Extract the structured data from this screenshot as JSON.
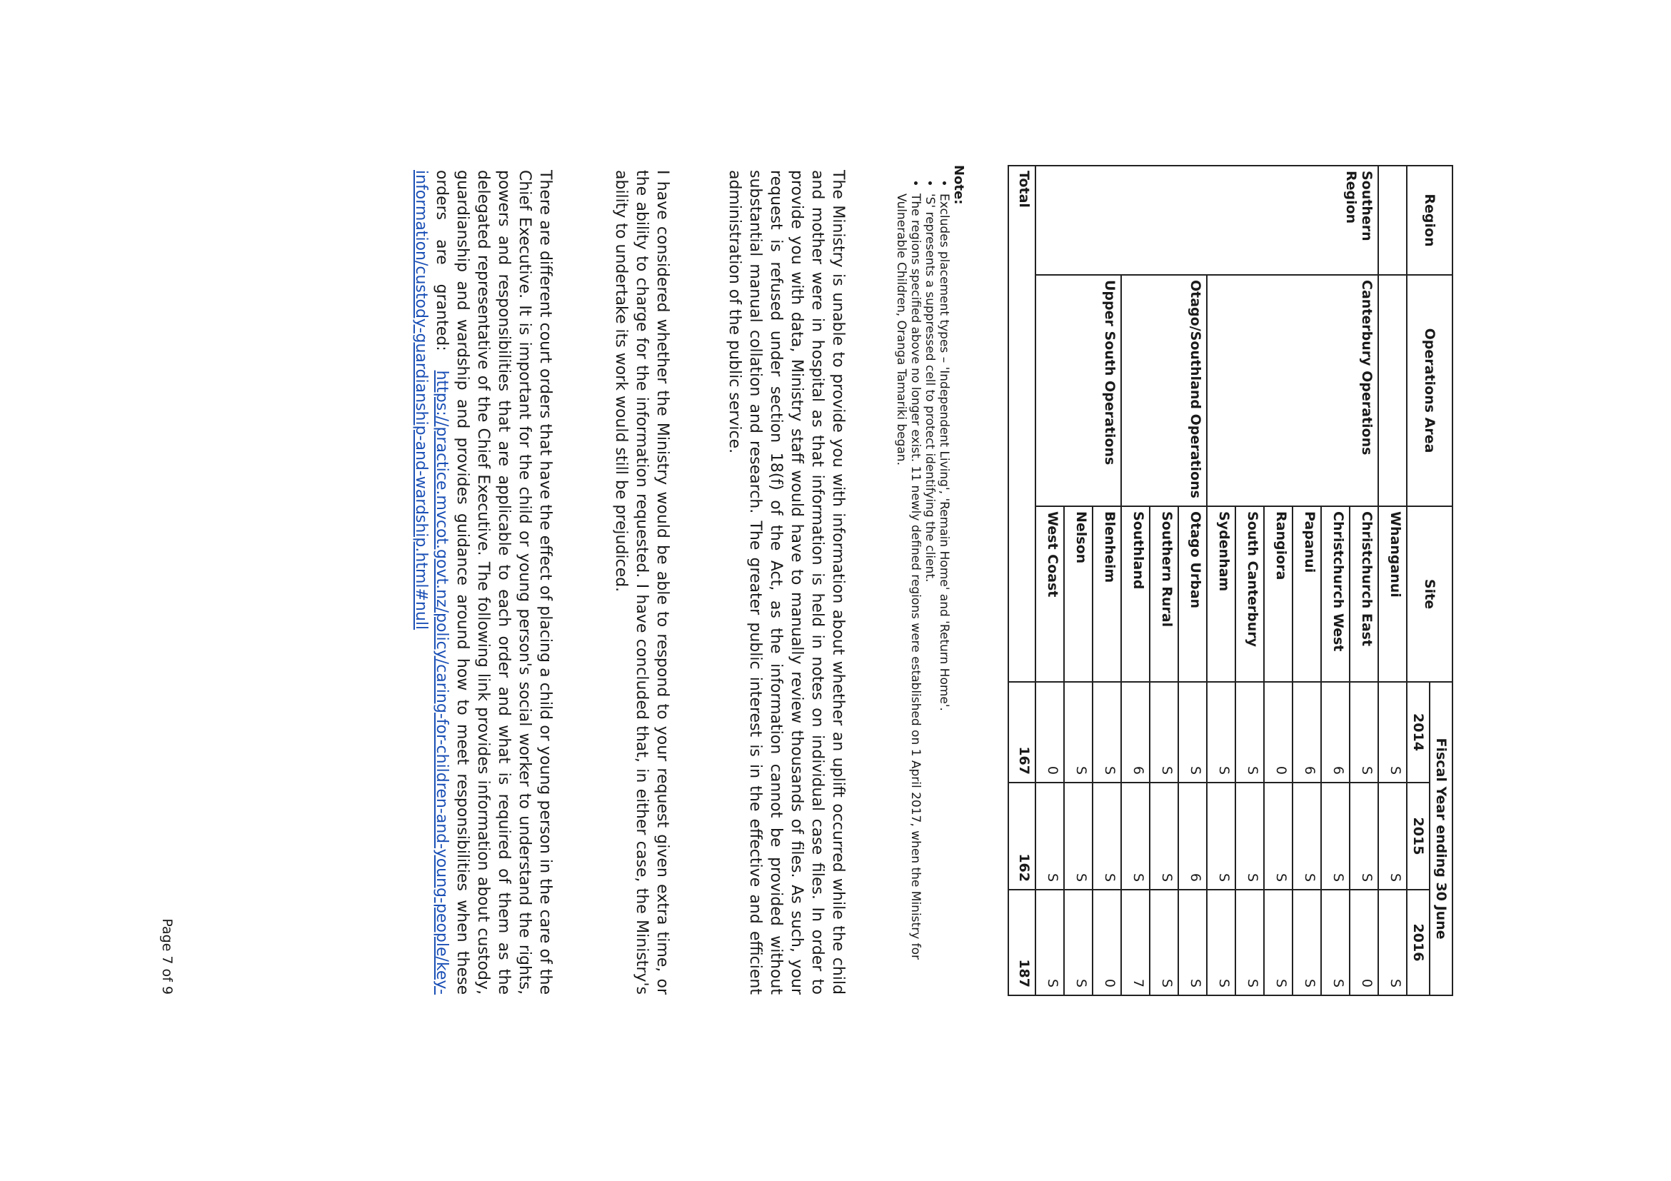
{
  "table": {
    "headers": {
      "region": "Region",
      "operations_area": "Operations Area",
      "site": "Site",
      "fiscal_year": "Fiscal Year ending 30 June",
      "years": [
        "2014",
        "2015",
        "2016"
      ]
    },
    "southern_region": "Southern Region",
    "areas": {
      "canterbury": "Canterbury Operations",
      "otago": "Otago/Southland Operations",
      "upper_south": "Upper South Operations"
    },
    "rows": [
      {
        "site": "Whanganui",
        "values": [
          "S",
          "S",
          "S"
        ]
      },
      {
        "site": "Christchurch East",
        "values": [
          "S",
          "S",
          "0"
        ]
      },
      {
        "site": "Christchurch West",
        "values": [
          "6",
          "S",
          "S"
        ]
      },
      {
        "site": "Papanui",
        "values": [
          "6",
          "S",
          "S"
        ]
      },
      {
        "site": "Rangiora",
        "values": [
          "0",
          "S",
          "S"
        ]
      },
      {
        "site": "South Canterbury",
        "values": [
          "S",
          "S",
          "S"
        ]
      },
      {
        "site": "Sydenham",
        "values": [
          "S",
          "S",
          "S"
        ]
      },
      {
        "site": "Otago Urban",
        "values": [
          "S",
          "6",
          "S"
        ]
      },
      {
        "site": "Southern Rural",
        "values": [
          "S",
          "S",
          "S"
        ]
      },
      {
        "site": "Southland",
        "values": [
          "6",
          "S",
          "7"
        ]
      },
      {
        "site": "Blenheim",
        "values": [
          "S",
          "S",
          "0"
        ]
      },
      {
        "site": "Nelson",
        "values": [
          "S",
          "S",
          "S"
        ]
      },
      {
        "site": "West Coast",
        "values": [
          "0",
          "S",
          "S"
        ]
      }
    ],
    "total": {
      "label": "Total",
      "values": [
        "167",
        "162",
        "187"
      ]
    }
  },
  "notes": {
    "title": "Note:",
    "items": [
      "Excludes placement types – 'Independent Living', 'Remain Home' and 'Return Home'.",
      "'S' represents a suppressed cell to protect identifying the client.",
      "The regions specified above no longer exist. 11 newly defined regions were established on 1 April 2017, when the Ministry for Vulnerable Children, Oranga Tamariki began."
    ]
  },
  "paragraphs": [
    "The Ministry is unable to provide you with information about whether an uplift occurred while the child and mother were in hospital as that information is held in notes on individual case files. In order to provide you with data, Ministry staff would have to manually review thousands of files. As such, your request is refused under section 18(f) of the Act, as the information cannot be provided without substantial manual collation and research. The greater public interest is in the effective and efficient administration of the public service.",
    "I have considered whether the Ministry would be able to respond to your request given extra time, or the ability to charge for the information requested. I have concluded that, in either case, the Ministry's ability to undertake its work would still be prejudiced.",
    "There are different court orders that have the effect of placing a child or young person in the care of the Chief Executive. It is important for the child or young person's social worker to understand the rights, powers and responsibilities that are applicable to each order and what is required of them as the delegated representative of the Chief Executive. The following link provides information about custody, guardianship and wardship and provides guidance around how to meet responsibilities when these orders are granted: "
  ],
  "link": "https://practice.mvcot.govt.nz/policy/caring-for-children-and-young-people/key-information/custody-guardianship-and-wardship.html#null",
  "footer": "Page 7 of 9",
  "colors": {
    "link": "#1a4fb5",
    "text": "#1a1a1a"
  }
}
